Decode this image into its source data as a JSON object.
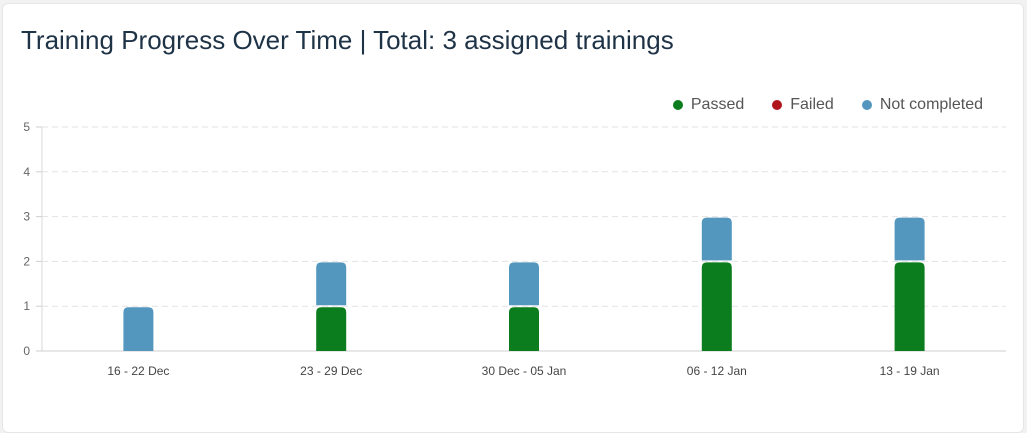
{
  "title": "Training Progress Over Time | Total: 3 assigned trainings",
  "chart_data": {
    "type": "bar",
    "stacked": true,
    "categories": [
      "16 - 22 Dec",
      "23 - 29 Dec",
      "30 Dec - 05 Jan",
      "06 - 12 Jan",
      "13 - 19 Jan"
    ],
    "series": [
      {
        "name": "Passed",
        "color": "#0b7d1e",
        "values": [
          0,
          1,
          1,
          2,
          2
        ]
      },
      {
        "name": "Failed",
        "color": "#b0151b",
        "values": [
          0,
          0,
          0,
          0,
          0
        ]
      },
      {
        "name": "Not completed",
        "color": "#5497be",
        "values": [
          1,
          1,
          1,
          1,
          1
        ]
      }
    ],
    "ylim": [
      0,
      5
    ],
    "yticks": [
      "0",
      "1",
      "2",
      "3",
      "4",
      "5"
    ],
    "grid": true,
    "legend": "top-right"
  }
}
